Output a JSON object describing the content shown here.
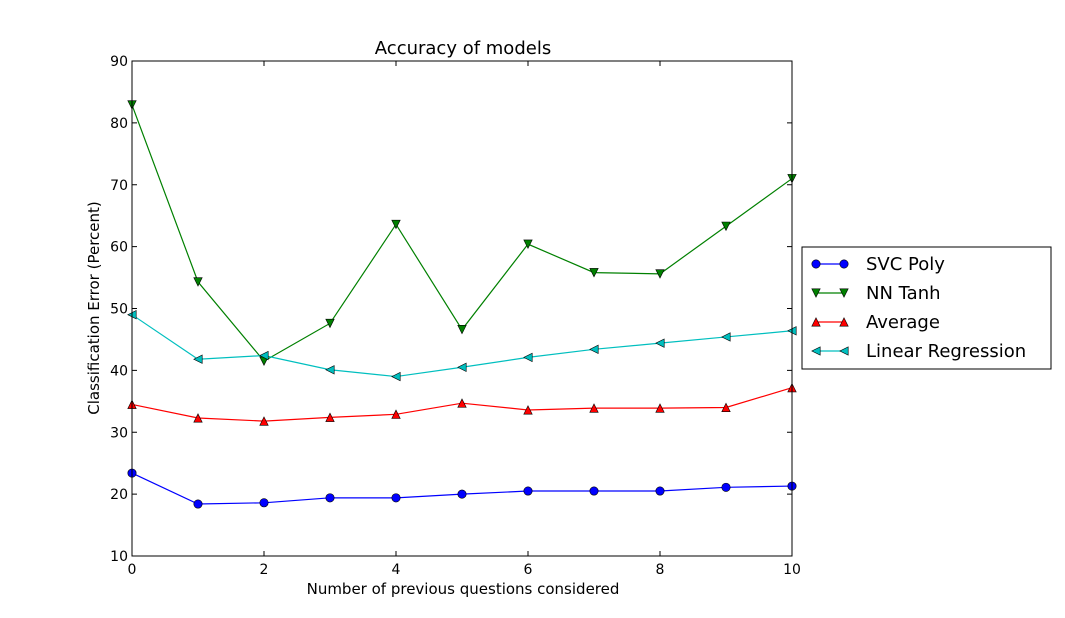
{
  "chart_data": {
    "type": "line",
    "title": "Accuracy of models",
    "xlabel": "Number of previous questions considered",
    "ylabel": "Classification Error (Percent)",
    "xlim": [
      0,
      10
    ],
    "ylim": [
      10,
      90
    ],
    "xticks": [
      0,
      2,
      4,
      6,
      8,
      10
    ],
    "yticks": [
      10,
      20,
      30,
      40,
      50,
      60,
      70,
      80,
      90
    ],
    "grid": false,
    "legend_position": "right",
    "x": [
      0,
      1,
      2,
      3,
      4,
      5,
      6,
      7,
      8,
      9,
      10
    ],
    "series": [
      {
        "name": "SVC Poly",
        "color": "#0000ff",
        "marker": "circle",
        "values": [
          23.4,
          18.4,
          18.6,
          19.4,
          19.4,
          20.0,
          20.5,
          20.5,
          20.5,
          21.1,
          21.3
        ]
      },
      {
        "name": "NN Tanh",
        "color": "#008000",
        "marker": "triangle-down",
        "values": [
          82.9,
          54.3,
          41.5,
          47.6,
          63.6,
          46.6,
          60.4,
          55.8,
          55.6,
          63.3,
          71.0
        ]
      },
      {
        "name": "Average",
        "color": "#ff0000",
        "marker": "triangle-up",
        "values": [
          34.5,
          32.3,
          31.8,
          32.4,
          32.9,
          34.7,
          33.6,
          33.9,
          33.9,
          34.0,
          37.2
        ]
      },
      {
        "name": "Linear Regression",
        "color": "#00bfbf",
        "marker": "triangle-left",
        "values": [
          49.0,
          41.8,
          42.4,
          40.1,
          39.0,
          40.5,
          42.1,
          43.4,
          44.4,
          45.4,
          46.4
        ]
      }
    ]
  }
}
